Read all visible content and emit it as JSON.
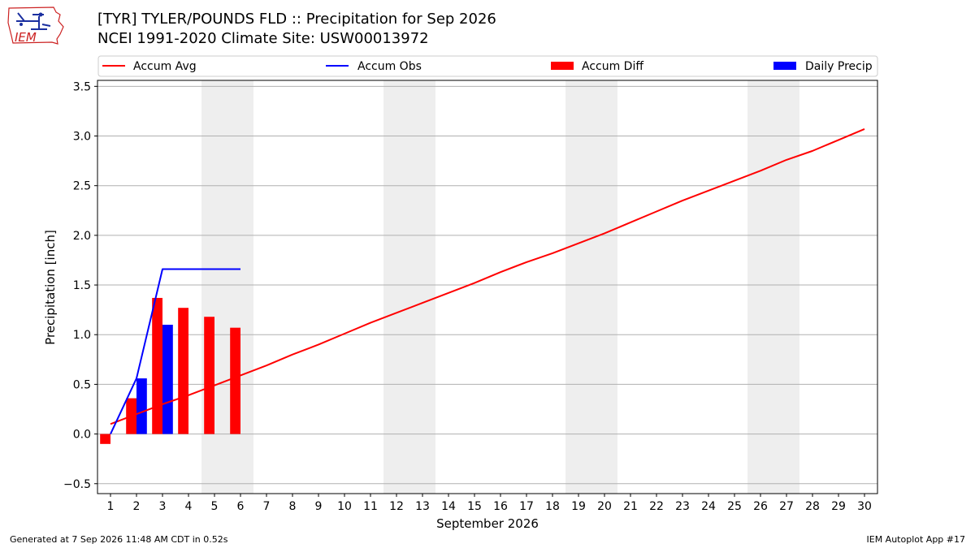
{
  "header": {
    "title_line1": "[TYR] TYLER/POUNDS FLD :: Precipitation for Sep 2026",
    "title_line2": "NCEI 1991-2020 Climate Site: USW00013972",
    "logo_text": "IEM"
  },
  "footer": {
    "left": "Generated at 7 Sep 2026 11:48 AM CDT in 0.52s",
    "right": "IEM Autoplot App #17"
  },
  "colors": {
    "accum_avg": "#ff0000",
    "accum_obs": "#0000ff",
    "accum_diff": "#ff0000",
    "daily_precip": "#0000ff",
    "weekend_shade": "#eeeeee",
    "grid": "#b0b0b0"
  },
  "chart_data": {
    "type": "bar",
    "xlabel": "September 2026",
    "ylabel": "Precipitation [inch]",
    "xlim": [
      0.5,
      30.5
    ],
    "ylim": [
      -0.6,
      3.56
    ],
    "x_ticks": [
      1,
      2,
      3,
      4,
      5,
      6,
      7,
      8,
      9,
      10,
      11,
      12,
      13,
      14,
      15,
      16,
      17,
      18,
      19,
      20,
      21,
      22,
      23,
      24,
      25,
      26,
      27,
      28,
      29,
      30
    ],
    "y_ticks": [
      -0.5,
      0.0,
      0.5,
      1.0,
      1.5,
      2.0,
      2.5,
      3.0,
      3.5
    ],
    "y_tick_labels": [
      "−0.5",
      "0.0",
      "0.5",
      "1.0",
      "1.5",
      "2.0",
      "2.5",
      "3.0",
      "3.5"
    ],
    "grid": "horizontal",
    "legend_placement": "top",
    "legend": [
      "Accum Avg",
      "Accum Obs",
      "Accum Diff",
      "Daily Precip"
    ],
    "weekend_spans": [
      [
        4.5,
        6.5
      ],
      [
        11.5,
        13.5
      ],
      [
        18.5,
        20.5
      ],
      [
        25.5,
        27.5
      ]
    ],
    "series": [
      {
        "name": "Accum Avg",
        "kind": "line",
        "x": [
          1,
          2,
          3,
          4,
          5,
          6,
          7,
          8,
          9,
          10,
          11,
          12,
          13,
          14,
          15,
          16,
          17,
          18,
          19,
          20,
          21,
          22,
          23,
          24,
          25,
          26,
          27,
          28,
          29,
          30
        ],
        "values": [
          0.1,
          0.2,
          0.3,
          0.39,
          0.49,
          0.59,
          0.69,
          0.8,
          0.9,
          1.01,
          1.12,
          1.22,
          1.32,
          1.42,
          1.52,
          1.63,
          1.73,
          1.82,
          1.92,
          2.02,
          2.13,
          2.24,
          2.35,
          2.45,
          2.55,
          2.65,
          2.76,
          2.85,
          2.96,
          3.07
        ]
      },
      {
        "name": "Accum Obs",
        "kind": "line",
        "x": [
          1,
          2,
          3,
          4,
          5,
          6
        ],
        "values": [
          0.0,
          0.56,
          1.66,
          1.66,
          1.66,
          1.66
        ]
      },
      {
        "name": "Accum Diff",
        "kind": "bar",
        "x": [
          1,
          2,
          3,
          4,
          5,
          6
        ],
        "values": [
          -0.1,
          0.36,
          1.37,
          1.27,
          1.18,
          1.07
        ]
      },
      {
        "name": "Daily Precip",
        "kind": "bar",
        "x": [
          1,
          2,
          3,
          4,
          5,
          6
        ],
        "values": [
          0.0,
          0.56,
          1.1,
          0.0,
          0.0,
          0.0
        ]
      }
    ]
  }
}
